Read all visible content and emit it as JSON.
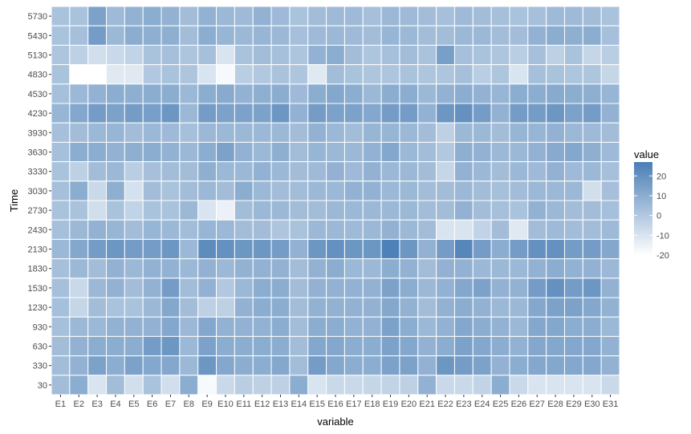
{
  "chart_data": {
    "type": "heatmap",
    "xlabel": "variable",
    "ylabel": "Time",
    "x": [
      "E1",
      "E2",
      "E3",
      "E4",
      "E5",
      "E6",
      "E7",
      "E8",
      "E9",
      "E10",
      "E11",
      "E12",
      "E13",
      "E14",
      "E15",
      "E16",
      "E17",
      "E18",
      "E19",
      "E20",
      "E21",
      "E22",
      "E23",
      "E24",
      "E25",
      "E26",
      "E27",
      "E28",
      "E29",
      "E30",
      "E31"
    ],
    "y": [
      "5730",
      "5430",
      "5130",
      "4830",
      "4530",
      "4230",
      "3930",
      "3630",
      "3330",
      "3030",
      "2730",
      "2430",
      "2130",
      "1830",
      "1530",
      "1230",
      "930",
      "630",
      "330",
      "30"
    ],
    "values": [
      [
        2,
        2,
        14,
        5,
        8,
        10,
        8,
        4,
        8,
        6,
        5,
        8,
        5,
        2,
        4,
        5,
        5,
        3,
        6,
        5,
        4,
        3,
        5,
        4,
        3,
        2,
        3,
        5,
        5,
        4,
        2
      ],
      [
        2,
        3,
        16,
        6,
        10,
        9,
        9,
        4,
        10,
        7,
        6,
        7,
        6,
        3,
        5,
        6,
        5,
        4,
        7,
        6,
        4,
        4,
        6,
        6,
        4,
        4,
        8,
        10,
        9,
        10,
        3
      ],
      [
        1,
        -3,
        -8,
        -6,
        -4,
        2,
        3,
        1,
        3,
        -10,
        2,
        4,
        3,
        1,
        8,
        10,
        4,
        1,
        3,
        4,
        2,
        15,
        3,
        2,
        1,
        -2,
        3,
        -3,
        2,
        -5,
        -2
      ],
      [
        2,
        -20,
        -20,
        -12,
        -12,
        0,
        2,
        1,
        -10,
        -18,
        -2,
        0,
        2,
        1,
        -12,
        4,
        2,
        1,
        1,
        2,
        1,
        1,
        3,
        -2,
        1,
        -10,
        3,
        2,
        1,
        1,
        -5
      ],
      [
        3,
        6,
        8,
        10,
        9,
        10,
        10,
        6,
        10,
        11,
        8,
        9,
        10,
        5,
        10,
        12,
        10,
        6,
        10,
        10,
        6,
        8,
        10,
        8,
        7,
        10,
        10,
        11,
        10,
        9,
        7
      ],
      [
        7,
        12,
        16,
        14,
        16,
        15,
        18,
        6,
        16,
        14,
        14,
        14,
        18,
        8,
        16,
        14,
        14,
        12,
        16,
        16,
        8,
        18,
        20,
        16,
        8,
        16,
        16,
        18,
        14,
        16,
        8
      ],
      [
        3,
        4,
        6,
        7,
        4,
        6,
        5,
        3,
        6,
        6,
        6,
        6,
        6,
        4,
        8,
        6,
        4,
        7,
        7,
        6,
        4,
        -3,
        6,
        6,
        4,
        7,
        7,
        8,
        6,
        5,
        4
      ],
      [
        3,
        10,
        10,
        8,
        9,
        10,
        8,
        6,
        10,
        14,
        8,
        6,
        9,
        4,
        7,
        6,
        6,
        8,
        12,
        6,
        4,
        0,
        9,
        8,
        6,
        6,
        8,
        11,
        12,
        9,
        5
      ],
      [
        2,
        -3,
        4,
        6,
        -2,
        3,
        4,
        4,
        9,
        6,
        6,
        8,
        6,
        4,
        5,
        8,
        5,
        8,
        6,
        6,
        4,
        -5,
        8,
        6,
        4,
        6,
        5,
        8,
        5,
        6,
        3
      ],
      [
        3,
        10,
        -6,
        9,
        -9,
        4,
        2,
        4,
        6,
        4,
        10,
        6,
        4,
        4,
        6,
        6,
        8,
        8,
        6,
        6,
        4,
        4,
        6,
        4,
        3,
        4,
        6,
        6,
        6,
        -8,
        3
      ],
      [
        2,
        2,
        -8,
        2,
        -4,
        2,
        2,
        6,
        -10,
        -15,
        4,
        6,
        6,
        4,
        4,
        6,
        6,
        6,
        6,
        6,
        4,
        4,
        8,
        4,
        3,
        2,
        8,
        6,
        4,
        4,
        3
      ],
      [
        3,
        6,
        8,
        7,
        4,
        7,
        6,
        4,
        7,
        6,
        4,
        4,
        1,
        2,
        6,
        6,
        5,
        6,
        8,
        6,
        4,
        -10,
        -10,
        -4,
        4,
        -12,
        4,
        5,
        4,
        4,
        5
      ],
      [
        6,
        12,
        16,
        18,
        16,
        16,
        18,
        6,
        22,
        20,
        18,
        18,
        16,
        8,
        18,
        20,
        18,
        18,
        26,
        18,
        8,
        16,
        24,
        16,
        10,
        16,
        20,
        20,
        16,
        16,
        12
      ],
      [
        3,
        6,
        4,
        8,
        6,
        8,
        8,
        6,
        8,
        6,
        8,
        8,
        8,
        4,
        8,
        10,
        6,
        6,
        10,
        8,
        4,
        8,
        8,
        6,
        6,
        6,
        8,
        10,
        8,
        8,
        6
      ],
      [
        3,
        -6,
        6,
        8,
        4,
        8,
        16,
        4,
        8,
        0,
        6,
        10,
        10,
        4,
        8,
        8,
        8,
        8,
        14,
        10,
        6,
        8,
        12,
        14,
        8,
        8,
        16,
        20,
        16,
        18,
        8
      ],
      [
        3,
        -5,
        4,
        2,
        2,
        6,
        12,
        4,
        -3,
        -3,
        8,
        10,
        10,
        4,
        8,
        8,
        8,
        8,
        12,
        8,
        4,
        8,
        10,
        8,
        6,
        6,
        12,
        14,
        14,
        12,
        8
      ],
      [
        3,
        6,
        6,
        8,
        8,
        8,
        12,
        6,
        12,
        8,
        8,
        8,
        10,
        4,
        10,
        10,
        8,
        8,
        14,
        10,
        6,
        8,
        12,
        10,
        8,
        6,
        12,
        12,
        10,
        10,
        6
      ],
      [
        4,
        8,
        10,
        10,
        10,
        16,
        18,
        6,
        14,
        10,
        10,
        10,
        10,
        4,
        12,
        12,
        10,
        10,
        14,
        12,
        8,
        10,
        14,
        12,
        10,
        8,
        12,
        12,
        12,
        12,
        8
      ],
      [
        4,
        8,
        14,
        10,
        14,
        12,
        12,
        6,
        18,
        12,
        10,
        10,
        12,
        4,
        16,
        12,
        10,
        10,
        14,
        14,
        8,
        18,
        16,
        14,
        8,
        10,
        12,
        12,
        12,
        12,
        8
      ],
      [
        4,
        10,
        -10,
        4,
        -8,
        2,
        -8,
        10,
        -18,
        -6,
        -2,
        -3,
        -3,
        10,
        -10,
        -6,
        -6,
        -5,
        -4,
        -3,
        8,
        -6,
        -6,
        -4,
        10,
        -6,
        -10,
        -10,
        -10,
        -10,
        -6
      ]
    ],
    "scale": {
      "min": -20,
      "max": 27,
      "low_color": "#ffffff",
      "high_color": "#4a7eb5"
    },
    "panel_background": "#ebebeb",
    "legend": {
      "title": "value",
      "breaks": [
        "20",
        "10",
        "0",
        "-10",
        "-20"
      ],
      "position": "right"
    }
  }
}
